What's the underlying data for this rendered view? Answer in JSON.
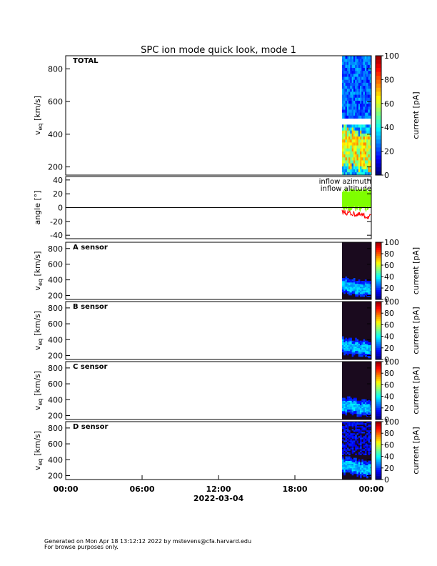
{
  "chart_data": {
    "type": "heatmap",
    "title": "SPC ion mode quick look, mode 1",
    "date_label": "2022-03-04",
    "x_ticks": [
      "00:00",
      "06:00",
      "12:00",
      "18:00",
      "00:00"
    ],
    "data_start_hour": 21.7,
    "panels": [
      {
        "id": "total",
        "label": "TOTAL",
        "ylabel": "v_eq [km/s]",
        "ylabel_main": "v",
        "ylabel_sub": "eq",
        "ylabel_unit": " [km/s]",
        "y_ticks": [
          200,
          400,
          600,
          800
        ],
        "ylim": [
          150,
          880
        ],
        "colorbar": {
          "label": "current [pA]",
          "ticks": [
            0,
            20,
            40,
            60,
            80,
            100
          ],
          "range": [
            0,
            100
          ]
        }
      },
      {
        "id": "angle",
        "label": "",
        "ylabel": "angle [°]",
        "y_ticks": [
          -40,
          -20,
          0,
          20,
          40
        ],
        "ylim": [
          -45,
          45
        ],
        "series": [
          {
            "name": "inflow azimuth",
            "color": "#ff0000"
          },
          {
            "name": "inflow altitude",
            "color": "#7fff00"
          }
        ]
      },
      {
        "id": "a",
        "label": "A sensor",
        "ylabel_main": "v",
        "ylabel_sub": "eq",
        "ylabel_unit": " [km/s]",
        "y_ticks": [
          200,
          400,
          600,
          800
        ],
        "ylim": [
          150,
          880
        ],
        "colorbar": {
          "label": "current [pA]",
          "ticks": [
            0,
            20,
            40,
            60,
            80,
            100
          ],
          "range": [
            0,
            100
          ]
        }
      },
      {
        "id": "b",
        "label": "B sensor",
        "ylabel_main": "v",
        "ylabel_sub": "eq",
        "ylabel_unit": " [km/s]",
        "y_ticks": [
          200,
          400,
          600,
          800
        ],
        "ylim": [
          150,
          880
        ],
        "colorbar": {
          "label": "current [pA]",
          "ticks": [
            0,
            20,
            40,
            60,
            80,
            100
          ],
          "range": [
            0,
            100
          ]
        }
      },
      {
        "id": "c",
        "label": "C sensor",
        "ylabel_main": "v",
        "ylabel_sub": "eq",
        "ylabel_unit": " [km/s]",
        "y_ticks": [
          200,
          400,
          600,
          800
        ],
        "ylim": [
          150,
          880
        ],
        "colorbar": {
          "label": "current [pA]",
          "ticks": [
            0,
            20,
            40,
            60,
            80,
            100
          ],
          "range": [
            0,
            100
          ]
        }
      },
      {
        "id": "d",
        "label": "D sensor",
        "ylabel_main": "v",
        "ylabel_sub": "eq",
        "ylabel_unit": " [km/s]",
        "y_ticks": [
          200,
          400,
          600,
          800
        ],
        "ylim": [
          150,
          880
        ],
        "colorbar": {
          "label": "current [pA]",
          "ticks": [
            0,
            20,
            40,
            60,
            80,
            100
          ],
          "range": [
            0,
            100
          ]
        }
      }
    ]
  },
  "footer": {
    "line1": "Generated on Mon Apr 18 13:12:12 2022 by mstevens@cfa.harvard.edu",
    "line2": "For browse purposes only."
  }
}
